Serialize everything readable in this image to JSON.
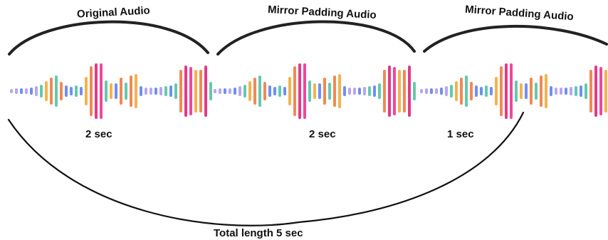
{
  "segments": [
    {
      "title": "Original Audio",
      "duration": "2 sec"
    },
    {
      "title": "Mirror Padding Audio",
      "duration": "2 sec"
    },
    {
      "title": "Mirror Padding Audio",
      "duration": "1 sec"
    }
  ],
  "total_label": "Total length 5 sec",
  "waveform": {
    "palette": [
      "#b7a6f0",
      "#6f8ff2",
      "#64c9b0",
      "#f2b34f",
      "#ef8a56",
      "#f0479d",
      "#e23a8a"
    ]
  }
}
